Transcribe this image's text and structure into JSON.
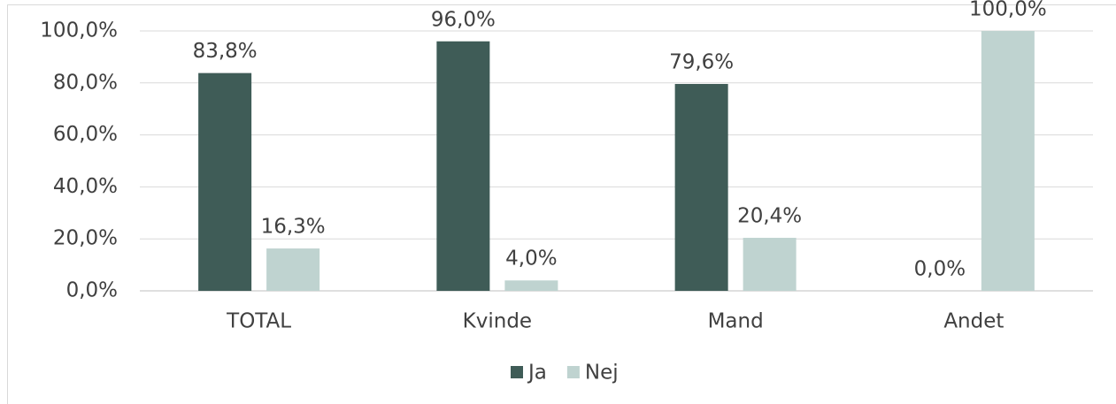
{
  "chart_data": {
    "type": "bar",
    "categories": [
      "TOTAL",
      "Kvinde",
      "Mand",
      "Andet"
    ],
    "series": [
      {
        "name": "Ja",
        "color": "#3f5c57",
        "values": [
          83.8,
          96.0,
          79.6,
          0.0
        ],
        "value_labels": [
          "83,8%",
          "96,0%",
          "79,6%",
          "0,0%"
        ]
      },
      {
        "name": "Nej",
        "color": "#bfd3d0",
        "values": [
          16.3,
          4.0,
          20.4,
          100.0
        ],
        "value_labels": [
          "16,3%",
          "4,0%",
          "20,4%",
          "100,0%"
        ]
      }
    ],
    "ylim": [
      0,
      100
    ],
    "yticks": [
      {
        "value": 0,
        "label": "0,0%"
      },
      {
        "value": 20,
        "label": "20,0%"
      },
      {
        "value": 40,
        "label": "40,0%"
      },
      {
        "value": 60,
        "label": "60,0%"
      },
      {
        "value": 80,
        "label": "80,0%"
      },
      {
        "value": 100,
        "label": "100,0%"
      }
    ],
    "grid": true,
    "legend": "bottom"
  }
}
